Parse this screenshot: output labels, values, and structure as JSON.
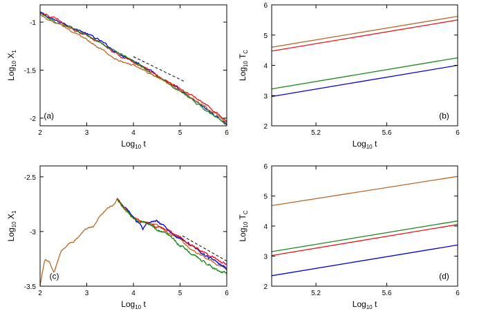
{
  "chart_data": [
    {
      "id": "a",
      "type": "line",
      "panel_label": "(a)",
      "xlabel": {
        "prefix": "Log",
        "sub": "10",
        "suffix": " t"
      },
      "ylabel": {
        "prefix": "Log",
        "sub": "10",
        "mid": " X",
        "sub2": "1"
      },
      "xlim": [
        2,
        6
      ],
      "ylim": [
        -2.08,
        -0.82
      ],
      "xticks": [
        2,
        3,
        4,
        5,
        6
      ],
      "xticklabels": [
        "2",
        "3",
        "4",
        "5",
        "6"
      ],
      "yticks": [
        -1,
        -1.5,
        -2
      ],
      "yticklabels": [
        "-1",
        "-1.5",
        "-2"
      ],
      "series": [
        {
          "name": "blue",
          "color": "#0000dd",
          "dash": false,
          "x": [
            2.0,
            2.3,
            2.6,
            3.0,
            3.3,
            3.6,
            4.0,
            4.3,
            4.6,
            5.0,
            5.3,
            5.6,
            6.0
          ],
          "y": [
            -0.9,
            -0.98,
            -1.03,
            -1.12,
            -1.2,
            -1.3,
            -1.4,
            -1.48,
            -1.58,
            -1.72,
            -1.82,
            -1.92,
            -2.06
          ]
        },
        {
          "name": "red",
          "color": "#ee1111",
          "dash": false,
          "x": [
            2.0,
            2.3,
            2.6,
            3.0,
            3.3,
            3.6,
            4.0,
            4.3,
            4.6,
            5.0,
            5.3,
            5.6,
            6.0
          ],
          "y": [
            -0.9,
            -0.96,
            -1.05,
            -1.13,
            -1.22,
            -1.32,
            -1.42,
            -1.5,
            -1.58,
            -1.7,
            -1.78,
            -1.88,
            -2.03
          ]
        },
        {
          "name": "green",
          "color": "#118811",
          "dash": false,
          "x": [
            2.0,
            2.3,
            2.6,
            3.0,
            3.3,
            3.6,
            4.0,
            4.3,
            4.6,
            5.0,
            5.3,
            5.6,
            6.0
          ],
          "y": [
            -0.9,
            -1.0,
            -1.05,
            -1.14,
            -1.22,
            -1.3,
            -1.4,
            -1.5,
            -1.6,
            -1.72,
            -1.82,
            -1.93,
            -2.08
          ]
        },
        {
          "name": "brown",
          "color": "#bb6622",
          "dash": false,
          "x": [
            2.0,
            2.3,
            2.6,
            3.0,
            3.3,
            3.6,
            4.0,
            4.3,
            4.6,
            5.0,
            5.3,
            5.6,
            6.0
          ],
          "y": [
            -0.92,
            -1.0,
            -1.07,
            -1.18,
            -1.28,
            -1.38,
            -1.45,
            -1.52,
            -1.6,
            -1.72,
            -1.8,
            -1.9,
            -2.04
          ]
        },
        {
          "name": "slope",
          "color": "#000000",
          "dash": true,
          "x": [
            4.0,
            5.1
          ],
          "y": [
            -1.36,
            -1.62
          ]
        }
      ]
    },
    {
      "id": "b",
      "type": "line",
      "panel_label": "(b)",
      "xlabel": {
        "prefix": "Log",
        "sub": "10",
        "suffix": " t"
      },
      "ylabel": {
        "prefix": "Log",
        "sub": "10",
        "mid": " T",
        "sub2": "C"
      },
      "xlim": [
        4.95,
        6
      ],
      "ylim": [
        2,
        6
      ],
      "xticks": [
        5.2,
        5.6,
        6
      ],
      "xticklabels": [
        "5.2",
        "5.6",
        "6"
      ],
      "yticks": [
        2,
        3,
        4,
        5,
        6
      ],
      "yticklabels": [
        "2",
        "3",
        "4",
        "5",
        "6"
      ],
      "series": [
        {
          "name": "brown",
          "color": "#bb6622",
          "dash": false,
          "x": [
            4.95,
            6.0
          ],
          "y": [
            4.6,
            5.62
          ]
        },
        {
          "name": "red",
          "color": "#ee1111",
          "dash": false,
          "x": [
            4.95,
            6.0
          ],
          "y": [
            4.47,
            5.5
          ]
        },
        {
          "name": "green",
          "color": "#118811",
          "dash": false,
          "x": [
            4.95,
            6.0
          ],
          "y": [
            3.22,
            4.25
          ]
        },
        {
          "name": "blue",
          "color": "#0000dd",
          "dash": false,
          "x": [
            4.95,
            6.0
          ],
          "y": [
            2.97,
            4.0
          ]
        }
      ]
    },
    {
      "id": "c",
      "type": "line",
      "panel_label": "(c)",
      "xlabel": {
        "prefix": "Log",
        "sub": "10",
        "suffix": " t"
      },
      "ylabel": {
        "prefix": "Log",
        "sub": "10",
        "mid": " X",
        "sub2": "1"
      },
      "xlim": [
        2,
        6
      ],
      "ylim": [
        -3.5,
        -2.4
      ],
      "xticks": [
        2,
        3,
        4,
        5,
        6
      ],
      "xticklabels": [
        "2",
        "3",
        "4",
        "5",
        "6"
      ],
      "yticks": [
        -2.5,
        -3,
        -3.5
      ],
      "yticklabels": [
        "-2.5",
        "-3",
        "-3.5"
      ],
      "series": [
        {
          "name": "brown",
          "color": "#bb6622",
          "dash": false,
          "x": [
            2.0,
            2.1,
            2.2,
            2.3,
            2.45,
            2.6,
            2.8,
            3.0,
            3.15,
            3.3,
            3.45,
            3.6,
            3.65,
            3.8,
            4.0,
            4.2,
            4.5,
            4.8,
            5.0,
            5.2,
            5.5,
            5.8,
            6.0
          ],
          "y": [
            -3.5,
            -3.25,
            -3.28,
            -3.38,
            -3.18,
            -3.12,
            -3.06,
            -2.98,
            -2.95,
            -2.85,
            -2.78,
            -2.75,
            -2.7,
            -2.8,
            -2.88,
            -2.92,
            -2.95,
            -3.02,
            -3.07,
            -3.15,
            -3.22,
            -3.3,
            -3.36
          ]
        },
        {
          "name": "blue",
          "color": "#0000dd",
          "dash": false,
          "x": [
            3.65,
            3.8,
            4.0,
            4.2,
            4.3,
            4.5,
            4.8,
            5.0,
            5.3,
            5.6,
            6.0
          ],
          "y": [
            -2.7,
            -2.78,
            -2.86,
            -2.98,
            -2.92,
            -2.9,
            -3.0,
            -3.06,
            -3.14,
            -3.24,
            -3.33
          ]
        },
        {
          "name": "red",
          "color": "#ee1111",
          "dash": false,
          "x": [
            3.65,
            4.0,
            4.4,
            4.8,
            5.0,
            5.3,
            5.6,
            6.0
          ],
          "y": [
            -2.7,
            -2.87,
            -2.95,
            -3.0,
            -3.06,
            -3.14,
            -3.22,
            -3.3
          ]
        },
        {
          "name": "green",
          "color": "#118811",
          "dash": false,
          "x": [
            3.65,
            4.0,
            4.4,
            4.8,
            5.0,
            5.3,
            5.6,
            5.8,
            6.0
          ],
          "y": [
            -2.7,
            -2.88,
            -2.96,
            -3.04,
            -3.13,
            -3.22,
            -3.3,
            -3.36,
            -3.38
          ]
        },
        {
          "name": "slope",
          "color": "#000000",
          "dash": true,
          "x": [
            5.05,
            6.0
          ],
          "y": [
            -3.04,
            -3.27
          ]
        }
      ]
    },
    {
      "id": "d",
      "type": "line",
      "panel_label": "(d)",
      "xlabel": {
        "prefix": "Log",
        "sub": "10",
        "suffix": " t"
      },
      "ylabel": {
        "prefix": "Log",
        "sub": "10",
        "mid": " T",
        "sub2": "C"
      },
      "xlim": [
        4.95,
        6
      ],
      "ylim": [
        2,
        6
      ],
      "xticks": [
        5.2,
        5.6,
        6
      ],
      "xticklabels": [
        "5.2",
        "5.6",
        "6"
      ],
      "yticks": [
        2,
        3,
        4,
        5,
        6
      ],
      "yticklabels": [
        "2",
        "3",
        "4",
        "5",
        "6"
      ],
      "series": [
        {
          "name": "brown",
          "color": "#bb6622",
          "dash": false,
          "x": [
            4.95,
            6.0
          ],
          "y": [
            4.68,
            5.65
          ]
        },
        {
          "name": "green",
          "color": "#118811",
          "dash": false,
          "x": [
            4.95,
            6.0
          ],
          "y": [
            3.15,
            4.17
          ]
        },
        {
          "name": "red",
          "color": "#ee1111",
          "dash": false,
          "x": [
            4.95,
            6.0
          ],
          "y": [
            3.02,
            4.05
          ]
        },
        {
          "name": "blue",
          "color": "#0000dd",
          "dash": false,
          "x": [
            4.95,
            6.0
          ],
          "y": [
            2.35,
            3.37
          ]
        }
      ]
    }
  ]
}
